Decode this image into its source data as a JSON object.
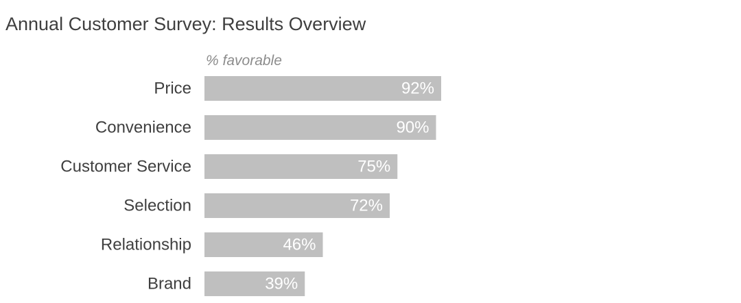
{
  "chart_data": {
    "type": "bar",
    "orientation": "horizontal",
    "title": "Annual Customer Survey: Results Overview",
    "subtitle": "% favorable",
    "categories": [
      "Price",
      "Convenience",
      "Customer Service",
      "Selection",
      "Relationship",
      "Brand"
    ],
    "values": [
      92,
      90,
      75,
      72,
      46,
      39
    ],
    "data_labels": [
      "92%",
      "90%",
      "75%",
      "72%",
      "46%",
      "39%"
    ],
    "xlim": [
      0,
      100
    ],
    "grid": false,
    "legend": "none",
    "bar_color": "#bfbfbf",
    "label_color": "#ffffff"
  }
}
